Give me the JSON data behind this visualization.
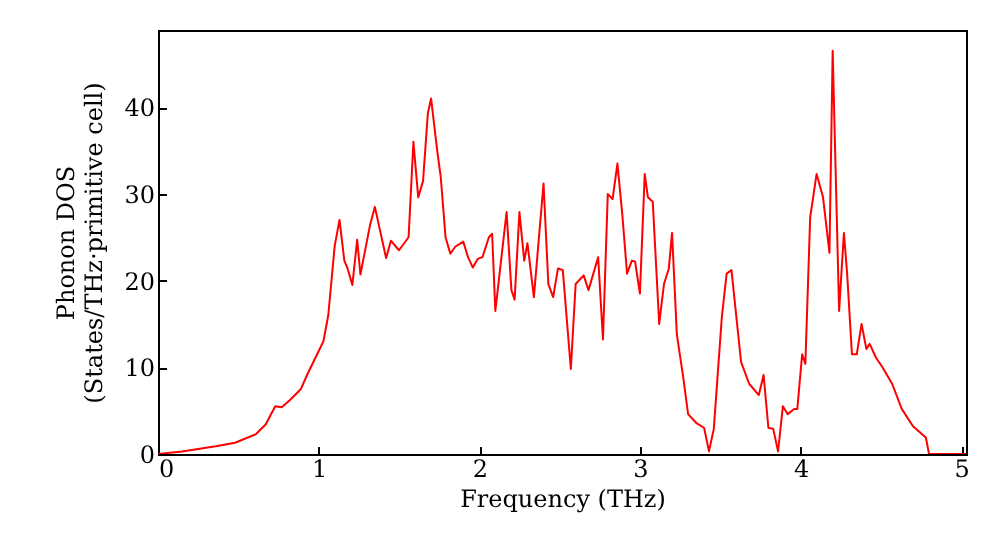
{
  "chart_data": {
    "type": "line",
    "xlabel": "Frequency (THz)",
    "ylabel": "Phonon DOS\n(States/THz·primitive cell)",
    "xlim": [
      0,
      5.03
    ],
    "ylim": [
      0,
      48.9
    ],
    "xticks": [
      0,
      1,
      2,
      3,
      4,
      5
    ],
    "yticks": [
      0,
      10,
      20,
      30,
      40
    ],
    "line_style": "solid",
    "series": [
      {
        "color": "#ff0000",
        "x": [
          0,
          0.15,
          0.36,
          0.48,
          0.61,
          0.67,
          0.73,
          0.77,
          0.82,
          0.89,
          0.93,
          1.03,
          1.06,
          1.1,
          1.13,
          1.16,
          1.18,
          1.21,
          1.24,
          1.26,
          1.32,
          1.35,
          1.42,
          1.45,
          1.5,
          1.56,
          1.59,
          1.62,
          1.65,
          1.68,
          1.7,
          1.74,
          1.76,
          1.79,
          1.82,
          1.85,
          1.9,
          1.93,
          1.96,
          1.99,
          2.02,
          2.06,
          2.08,
          2.1,
          2.17,
          2.2,
          2.22,
          2.25,
          2.28,
          2.3,
          2.34,
          2.4,
          2.43,
          2.46,
          2.49,
          2.52,
          2.57,
          2.6,
          2.65,
          2.68,
          2.74,
          2.77,
          2.8,
          2.83,
          2.86,
          2.89,
          2.92,
          2.95,
          2.97,
          3.0,
          3.03,
          3.05,
          3.08,
          3.12,
          3.15,
          3.18,
          3.2,
          3.23,
          3.27,
          3.3,
          3.35,
          3.4,
          3.43,
          3.46,
          3.51,
          3.54,
          3.57,
          3.63,
          3.68,
          3.74,
          3.77,
          3.8,
          3.83,
          3.86,
          3.89,
          3.92,
          3.96,
          3.98,
          4.01,
          4.03,
          4.06,
          4.1,
          4.14,
          4.18,
          4.2,
          4.24,
          4.27,
          4.29,
          4.32,
          4.35,
          4.38,
          4.41,
          4.43,
          4.47,
          4.51,
          4.57,
          4.63,
          4.7,
          4.78,
          4.8,
          5.03
        ],
        "values": [
          0,
          0.3,
          0.9,
          1.3,
          2.3,
          3.4,
          5.5,
          5.4,
          6.2,
          7.5,
          9.2,
          13,
          16,
          24,
          27,
          22.3,
          21.4,
          19.5,
          24.7,
          20.7,
          26.4,
          28.5,
          22.6,
          24.6,
          23.5,
          25,
          36,
          29.6,
          31.5,
          39.3,
          41,
          34.7,
          32,
          25,
          23.1,
          23.9,
          24.5,
          22.7,
          21.5,
          22.5,
          22.7,
          25,
          25.4,
          16.5,
          27.9,
          18.9,
          17.8,
          27.9,
          22.3,
          24.3,
          18.1,
          31.2,
          19.6,
          18.1,
          21.4,
          21.2,
          9.8,
          19.6,
          20.6,
          18.9,
          22.7,
          13.2,
          30,
          29.4,
          33.5,
          27.7,
          20.8,
          22.3,
          22.2,
          18.5,
          32.3,
          29.6,
          29.1,
          15,
          19.6,
          21.4,
          25.5,
          13.8,
          8.8,
          4.6,
          3.6,
          3,
          0.3,
          2.9,
          15.8,
          20.8,
          21.2,
          10.6,
          8.1,
          6.8,
          9.1,
          3,
          2.9,
          0.3,
          5.5,
          4.6,
          5.2,
          5.2,
          11.5,
          10.4,
          27.3,
          32.3,
          29.6,
          23.2,
          46.5,
          16.5,
          25.5,
          20.8,
          11.5,
          11.5,
          15,
          12.1,
          12.7,
          11.1,
          10,
          8.1,
          5.2,
          3.2,
          1.9,
          0,
          0
        ]
      }
    ]
  }
}
